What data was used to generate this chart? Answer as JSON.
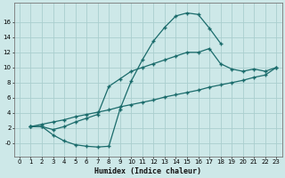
{
  "xlabel": "Humidex (Indice chaleur)",
  "bg_color": "#cde8e8",
  "grid_color": "#aacece",
  "line_color": "#1a6b6b",
  "xlim": [
    -0.5,
    23.5
  ],
  "ylim": [
    -1.8,
    18.5
  ],
  "xticks": [
    0,
    1,
    2,
    3,
    4,
    5,
    6,
    7,
    8,
    9,
    10,
    11,
    12,
    13,
    14,
    15,
    16,
    17,
    18,
    19,
    20,
    21,
    22,
    23
  ],
  "yticks": [
    0,
    2,
    4,
    6,
    8,
    10,
    12,
    14,
    16
  ],
  "curve1_x": [
    1,
    2,
    3,
    4,
    5,
    6,
    7,
    8,
    9,
    10,
    11,
    12,
    13,
    14,
    15,
    16,
    17,
    18
  ],
  "curve1_y": [
    2.2,
    2.2,
    1.1,
    0.3,
    -0.2,
    -0.4,
    -0.5,
    -0.4,
    4.5,
    8.2,
    11.0,
    13.5,
    15.3,
    16.8,
    17.2,
    17.0,
    15.2,
    13.2
  ],
  "curve2_x": [
    1,
    2,
    3,
    4,
    5,
    6,
    7,
    8,
    9,
    10,
    11,
    12,
    13,
    14,
    15,
    16,
    17,
    18,
    19,
    20,
    21,
    22,
    23
  ],
  "curve2_y": [
    2.2,
    2.2,
    1.8,
    2.2,
    2.8,
    3.3,
    3.8,
    7.5,
    8.5,
    9.5,
    10.0,
    10.5,
    11.0,
    11.5,
    12.0,
    12.0,
    12.5,
    10.5,
    9.8,
    9.5,
    9.8,
    9.5,
    10.0
  ],
  "curve3_x": [
    1,
    23
  ],
  "curve3_y": [
    2.2,
    10.0
  ],
  "curve3_mid_x": [
    1,
    2,
    3,
    4,
    5,
    6,
    7,
    8,
    9,
    10,
    11,
    12,
    13,
    14,
    15,
    16,
    17,
    18,
    19,
    20,
    21,
    22,
    23
  ],
  "curve3_mid_y": [
    2.2,
    2.5,
    2.8,
    3.1,
    3.5,
    3.8,
    4.1,
    4.4,
    4.8,
    5.1,
    5.4,
    5.7,
    6.1,
    6.4,
    6.7,
    7.0,
    7.4,
    7.7,
    8.0,
    8.3,
    8.7,
    9.0,
    10.0
  ]
}
